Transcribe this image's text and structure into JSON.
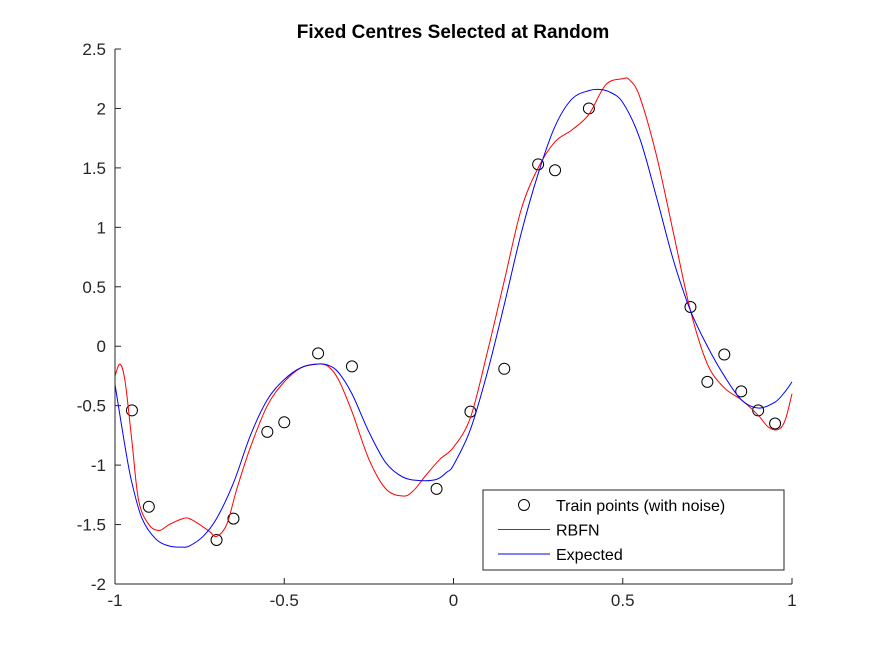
{
  "chart_data": {
    "type": "line",
    "title": "Fixed Centres Selected at Random",
    "xlabel": "",
    "ylabel": "",
    "xlim": [
      -1,
      1
    ],
    "ylim": [
      -2,
      2.5
    ],
    "xticks": [
      -1,
      -0.5,
      0,
      0.5,
      1
    ],
    "xtick_labels": [
      "-1",
      "-0.5",
      "0",
      "0.5",
      "1"
    ],
    "yticks": [
      -2,
      -1.5,
      -1,
      -0.5,
      0,
      0.5,
      1,
      1.5,
      2,
      2.5
    ],
    "ytick_labels": [
      "-2",
      "-1.5",
      "-1",
      "-0.5",
      "0",
      "0.5",
      "1",
      "1.5",
      "2",
      "2.5"
    ],
    "grid": false,
    "legend_position": "bottom-right",
    "series": [
      {
        "name": "Train points (with noise)",
        "kind": "scatter",
        "marker": "circle",
        "color": "#000000",
        "x": [
          -0.95,
          -0.9,
          -0.7,
          -0.65,
          -0.55,
          -0.5,
          -0.4,
          -0.3,
          -0.05,
          0.05,
          0.15,
          0.25,
          0.3,
          0.4,
          0.7,
          0.75,
          0.8,
          0.85,
          0.9,
          0.95
        ],
        "y": [
          -0.54,
          -1.35,
          -1.63,
          -1.45,
          -0.72,
          -0.64,
          -0.06,
          -0.17,
          -1.2,
          -0.55,
          -0.19,
          1.53,
          1.48,
          2.0,
          0.33,
          -0.3,
          -0.07,
          -0.38,
          -0.54,
          -0.65
        ]
      },
      {
        "name": "RBFN",
        "kind": "line",
        "color": "#ff0000",
        "x": [
          -1,
          -0.985,
          -0.97,
          -0.95,
          -0.93,
          -0.9,
          -0.87,
          -0.84,
          -0.8,
          -0.78,
          -0.75,
          -0.72,
          -0.7,
          -0.67,
          -0.64,
          -0.6,
          -0.55,
          -0.5,
          -0.45,
          -0.4,
          -0.37,
          -0.34,
          -0.3,
          -0.25,
          -0.2,
          -0.15,
          -0.12,
          -0.08,
          -0.04,
          0,
          0.05,
          0.1,
          0.15,
          0.2,
          0.25,
          0.3,
          0.35,
          0.4,
          0.45,
          0.5,
          0.52,
          0.55,
          0.6,
          0.65,
          0.7,
          0.75,
          0.8,
          0.85,
          0.9,
          0.93,
          0.96,
          0.98,
          1
        ],
        "y": [
          -0.25,
          -0.15,
          -0.3,
          -0.8,
          -1.3,
          -1.5,
          -1.55,
          -1.5,
          -1.45,
          -1.45,
          -1.5,
          -1.56,
          -1.6,
          -1.5,
          -1.2,
          -0.85,
          -0.5,
          -0.3,
          -0.18,
          -0.15,
          -0.17,
          -0.28,
          -0.55,
          -0.95,
          -1.2,
          -1.26,
          -1.22,
          -1.08,
          -0.95,
          -0.85,
          -0.6,
          -0.05,
          0.55,
          1.15,
          1.5,
          1.72,
          1.82,
          1.95,
          2.2,
          2.25,
          2.24,
          2.1,
          1.6,
          0.95,
          0.3,
          -0.15,
          -0.35,
          -0.45,
          -0.58,
          -0.68,
          -0.7,
          -0.62,
          -0.4
        ]
      },
      {
        "name": "Expected",
        "kind": "line",
        "color": "#0000ff",
        "x": [
          -1,
          -0.97,
          -0.95,
          -0.92,
          -0.88,
          -0.84,
          -0.8,
          -0.78,
          -0.74,
          -0.7,
          -0.65,
          -0.6,
          -0.55,
          -0.5,
          -0.45,
          -0.4,
          -0.37,
          -0.34,
          -0.3,
          -0.25,
          -0.2,
          -0.15,
          -0.1,
          -0.05,
          -0.02,
          0,
          0.05,
          0.1,
          0.15,
          0.2,
          0.25,
          0.3,
          0.35,
          0.4,
          0.43,
          0.46,
          0.5,
          0.55,
          0.6,
          0.65,
          0.7,
          0.75,
          0.8,
          0.85,
          0.9,
          0.95,
          0.98,
          1
        ],
        "y": [
          -0.32,
          -0.85,
          -1.15,
          -1.45,
          -1.62,
          -1.68,
          -1.69,
          -1.68,
          -1.6,
          -1.45,
          -1.15,
          -0.75,
          -0.45,
          -0.28,
          -0.18,
          -0.15,
          -0.16,
          -0.22,
          -0.4,
          -0.72,
          -0.98,
          -1.1,
          -1.13,
          -1.12,
          -1.06,
          -1.0,
          -0.7,
          -0.22,
          0.35,
          0.95,
          1.45,
          1.85,
          2.08,
          2.15,
          2.16,
          2.14,
          2.05,
          1.75,
          1.25,
          0.72,
          0.3,
          0.0,
          -0.25,
          -0.45,
          -0.52,
          -0.47,
          -0.38,
          -0.3
        ]
      }
    ]
  }
}
